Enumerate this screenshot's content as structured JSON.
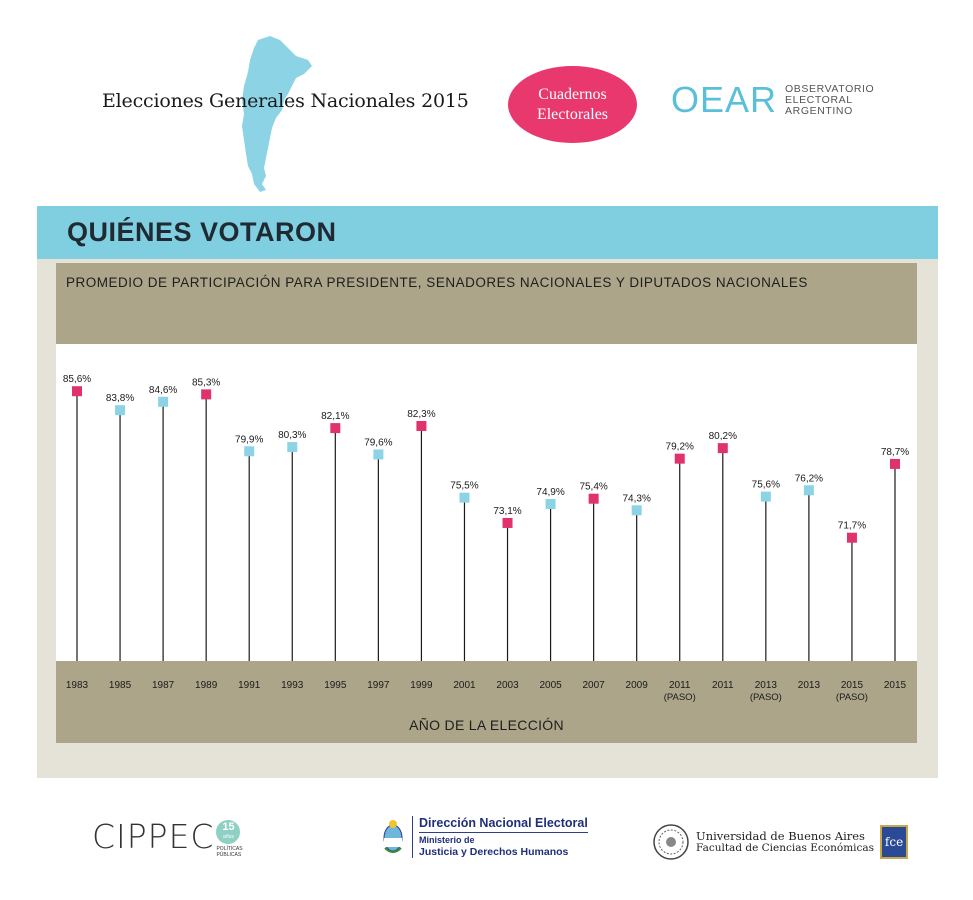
{
  "header": {
    "title": "Elecciones Generales Nacionales 2015",
    "badge_line1": "Cuadernos",
    "badge_line2": "Electorales",
    "oear_acronym": "OEAR",
    "oear_line1": "OBSERVATORIO",
    "oear_line2": "ELECTORAL",
    "oear_line3": "ARGENTINO"
  },
  "section": {
    "title": "QUIÉNES VOTARON"
  },
  "colors": {
    "section_band": "#7fcfe1",
    "header_band": "#aca58a",
    "panel_bg": "#e5e3d7",
    "marker_pink": "#e0336e",
    "marker_blue": "#8dd3e6",
    "badge_pink": "#e8386e",
    "map_blue": "#8dd3e6"
  },
  "chart_data": {
    "type": "scatter",
    "title": "PROMEDIO DE PARTICIPACIÓN PARA PRESIDENTE, SENADORES NACIONALES Y DIPUTADOS NACIONALES",
    "xlabel": "AÑO DE  LA ELECCIÓN",
    "ylabel": "",
    "ylim": [
      0,
      86
    ],
    "grid": false,
    "points": [
      {
        "year": "1983",
        "sub": "",
        "value": 85.6,
        "label": "85,6%",
        "marker": "pink"
      },
      {
        "year": "1985",
        "sub": "",
        "value": 83.8,
        "label": "83,8%",
        "marker": "blue"
      },
      {
        "year": "1987",
        "sub": "",
        "value": 84.6,
        "label": "84,6%",
        "marker": "blue"
      },
      {
        "year": "1989",
        "sub": "",
        "value": 85.3,
        "label": "85,3%",
        "marker": "pink"
      },
      {
        "year": "1991",
        "sub": "",
        "value": 79.9,
        "label": "79,9%",
        "marker": "blue"
      },
      {
        "year": "1993",
        "sub": "",
        "value": 80.3,
        "label": "80,3%",
        "marker": "blue"
      },
      {
        "year": "1995",
        "sub": "",
        "value": 82.1,
        "label": "82,1%",
        "marker": "pink"
      },
      {
        "year": "1997",
        "sub": "",
        "value": 79.6,
        "label": "79,6%",
        "marker": "blue"
      },
      {
        "year": "1999",
        "sub": "",
        "value": 82.3,
        "label": "82,3%",
        "marker": "pink"
      },
      {
        "year": "2001",
        "sub": "",
        "value": 75.5,
        "label": "75,5%",
        "marker": "blue"
      },
      {
        "year": "2003",
        "sub": "",
        "value": 73.1,
        "label": "73,1%",
        "marker": "pink"
      },
      {
        "year": "2005",
        "sub": "",
        "value": 74.9,
        "label": "74,9%",
        "marker": "blue"
      },
      {
        "year": "2007",
        "sub": "",
        "value": 75.4,
        "label": "75,4%",
        "marker": "pink"
      },
      {
        "year": "2009",
        "sub": "",
        "value": 74.3,
        "label": "74,3%",
        "marker": "blue"
      },
      {
        "year": "2011",
        "sub": "(PASO)",
        "value": 79.2,
        "label": "79,2%",
        "marker": "pink"
      },
      {
        "year": "2011",
        "sub": "",
        "value": 80.2,
        "label": "80,2%",
        "marker": "pink"
      },
      {
        "year": "2013",
        "sub": "(PASO)",
        "value": 75.6,
        "label": "75,6%",
        "marker": "blue"
      },
      {
        "year": "2013",
        "sub": "",
        "value": 76.2,
        "label": "76,2%",
        "marker": "blue"
      },
      {
        "year": "2015",
        "sub": "(PASO)",
        "value": 71.7,
        "label": "71,7%",
        "marker": "pink"
      },
      {
        "year": "2015",
        "sub": "",
        "value": 78.7,
        "label": "78,7%",
        "marker": "pink"
      }
    ]
  },
  "footer": {
    "cippec_name": "CIPPEC",
    "cippec_years": "15",
    "cippec_years_word": "años",
    "cippec_tag1": "POLÍTICAS",
    "cippec_tag2": "PÚBLICAS",
    "dne_title": "Dirección Nacional Electoral",
    "dne_ministry1": "Ministerio de",
    "dne_ministry2": "Justicia y Derechos Humanos",
    "uba_name": "Universidad de Buenos Aires",
    "uba_faculty": "Facultad de Ciencias Económicas",
    "fce_badge": "fce"
  }
}
